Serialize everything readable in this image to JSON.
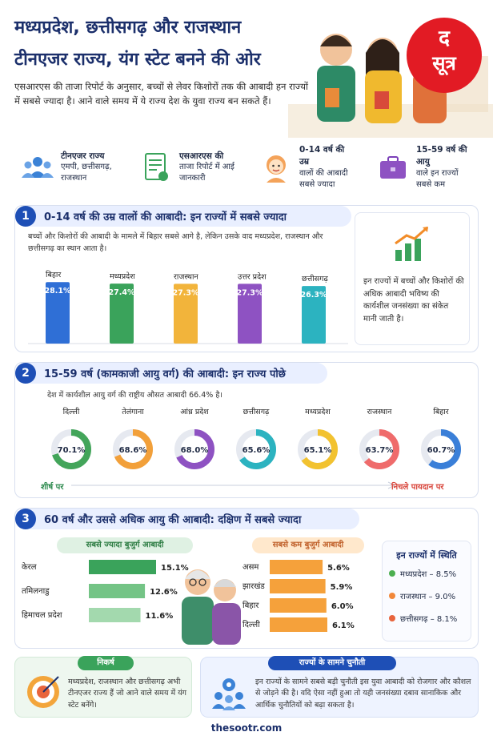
{
  "header": {
    "title_line1": "मध्यप्रदेश, छत्तीसगढ़ और राजस्थान",
    "title_line2": "टीनएजर राज्य, यंग स्टेट बनने की ओर",
    "intro": "एसआरएस की ताजा रिपोर्ट के अनुसार, बच्चों से लेवर किशोरों तक की आबादी हन राज्यों में सबसे ज्यादा है। आने वाले समय में ये राज्य देश के युवा राज्य बन सकते हैं।",
    "logo_top": "द",
    "logo_bottom": "सूत्र"
  },
  "cards": [
    {
      "title": "टीनएजर राज्य",
      "text": "एमपी, छत्तीसगढ़, राजस्थान",
      "bg": "#eaf1ff",
      "icon": "people-icon"
    },
    {
      "title": "एसआरएस की",
      "text": "ताजा रिपोर्ट में आई जानकारी",
      "bg": "#eaf7ec",
      "icon": "report-icon"
    },
    {
      "title": "0-14 वर्ष की उम्र",
      "text": "वालों की आबादी सबसे ज्यादा",
      "bg": "#fff3e0",
      "icon": "child-icon"
    },
    {
      "title": "15-59 वर्ष की आयु",
      "text": "वाले इन राज्यों सबसे कम",
      "bg": "#f1ecfb",
      "icon": "briefcase-icon"
    }
  ],
  "section1": {
    "number": "1",
    "title": "0-14 वर्ष की उम्र वालों की आबादी: इन राज्यों में सबसे ज्यादा",
    "note": "बच्चों और किशोरों की आबादी के मामले में बिहार सबसे आगे है, लेकिन उसके वाद मध्यप्रदेश, राजस्थान और छत्तीसगढ़ का स्थान आता है।",
    "side_text": "इन राज्यों में बच्चों और किशोरों की अधिक आबादी भविष्य की कार्यशील जनसंख्या का संकेत मानी जाती है।"
  },
  "section2": {
    "number": "2",
    "title": "15-59 वर्ष (कामकाजी आयु वर्ग) की आबादी: इन राज्य पोछे",
    "note": "देश में कार्यशील आयु वर्ग की राष्ट्रीय औसत आबादी 66.4% है।",
    "left_end": "शीर्ष पर",
    "right_end": "निचले पायदान पर"
  },
  "section3": {
    "number": "3",
    "title": "60 वर्ष और उससे अधिक आयु की आबादी: दक्षिण में सबसे ज्यादा",
    "most_label": "सबसे ज्यादा बुजुर्ग आबादी",
    "least_label": "सबसे कम बुजुर्ग आबादी",
    "status_title": "इन राज्यों में स्थिति",
    "status": [
      {
        "text": "मध्यप्रदेश – 8.5%",
        "color": "#4caf50"
      },
      {
        "text": "राजस्थान – 9.0%",
        "color": "#f2883a"
      },
      {
        "text": "छत्तीसगढ़ – 8.1%",
        "color": "#e8643c"
      }
    ]
  },
  "bottom": {
    "conclusion_title": "निकर्ष",
    "conclusion_text": "मध्यप्रदेश, राजस्थान और छत्तीसगढ़ अभी टीनएजर राज्य हैं जो आने वाले समय में यंग स्टेट बनेंगे।",
    "challenge_title": "राज्यों के सामने चुनौती",
    "challenge_text": "इन राज्यों के सामने सबसे बड़ी चुनौती इस युवा आबादी को रोजगार और कौशल से जोड़ने की है। वदि ऐसा नहीं हुआ तो यही जनसंख्या दबाव सानाकिक और आर्थिक चुनौतियों को बढ़ा सकता है।"
  },
  "footer": "thesootr.com",
  "chart_data": [
    {
      "type": "bar",
      "categories": [
        "बिहार",
        "मध्यप्रदेश",
        "राजस्थान",
        "उत्तर प्रदेश",
        "छत्तीसगढ़"
      ],
      "values": [
        28.1,
        27.4,
        27.3,
        27.3,
        26.3
      ],
      "value_labels": [
        "28.1%",
        "27.4%",
        "27.3%",
        "27.3%",
        "26.3%"
      ],
      "colors": [
        "#2f6fd6",
        "#3aa35b",
        "#f2b43b",
        "#8e52c2",
        "#2cb3c0"
      ]
    },
    {
      "type": "pie",
      "categories": [
        "दिल्ली",
        "तेलंगाना",
        "आंध्र प्रदेश",
        "छत्तीसगढ़",
        "मध्यप्रदेश",
        "राजस्थान",
        "बिहार"
      ],
      "values": [
        70.1,
        68.6,
        68.0,
        65.6,
        65.1,
        63.7,
        60.7
      ],
      "value_labels": [
        "70.1%",
        "68.6%",
        "68.0%",
        "65.6%",
        "65.1%",
        "63.7%",
        "60.7%"
      ],
      "colors": [
        "#43a55a",
        "#f2a03a",
        "#8e52c2",
        "#2cb3c0",
        "#f2c230",
        "#ef6b6b",
        "#3a7fd8"
      ]
    },
    {
      "type": "bar",
      "categories": [
        "केरल",
        "तमिलनाडु",
        "हिमाचल प्रदेश"
      ],
      "values": [
        15.1,
        12.6,
        11.6
      ],
      "value_labels": [
        "15.1%",
        "12.6%",
        "11.6%"
      ],
      "colors": [
        "#3aa35b",
        "#74c486",
        "#a3d9ae"
      ]
    },
    {
      "type": "bar",
      "categories": [
        "असम",
        "झारखंड",
        "बिहार",
        "दिल्ली"
      ],
      "values": [
        5.6,
        5.9,
        6.0,
        6.1
      ],
      "value_labels": [
        "5.6%",
        "5.9%",
        "6.0%",
        "6.1%"
      ],
      "colors": [
        "#f5a13b",
        "#f5a13b",
        "#f5a13b",
        "#f5a13b"
      ]
    }
  ]
}
